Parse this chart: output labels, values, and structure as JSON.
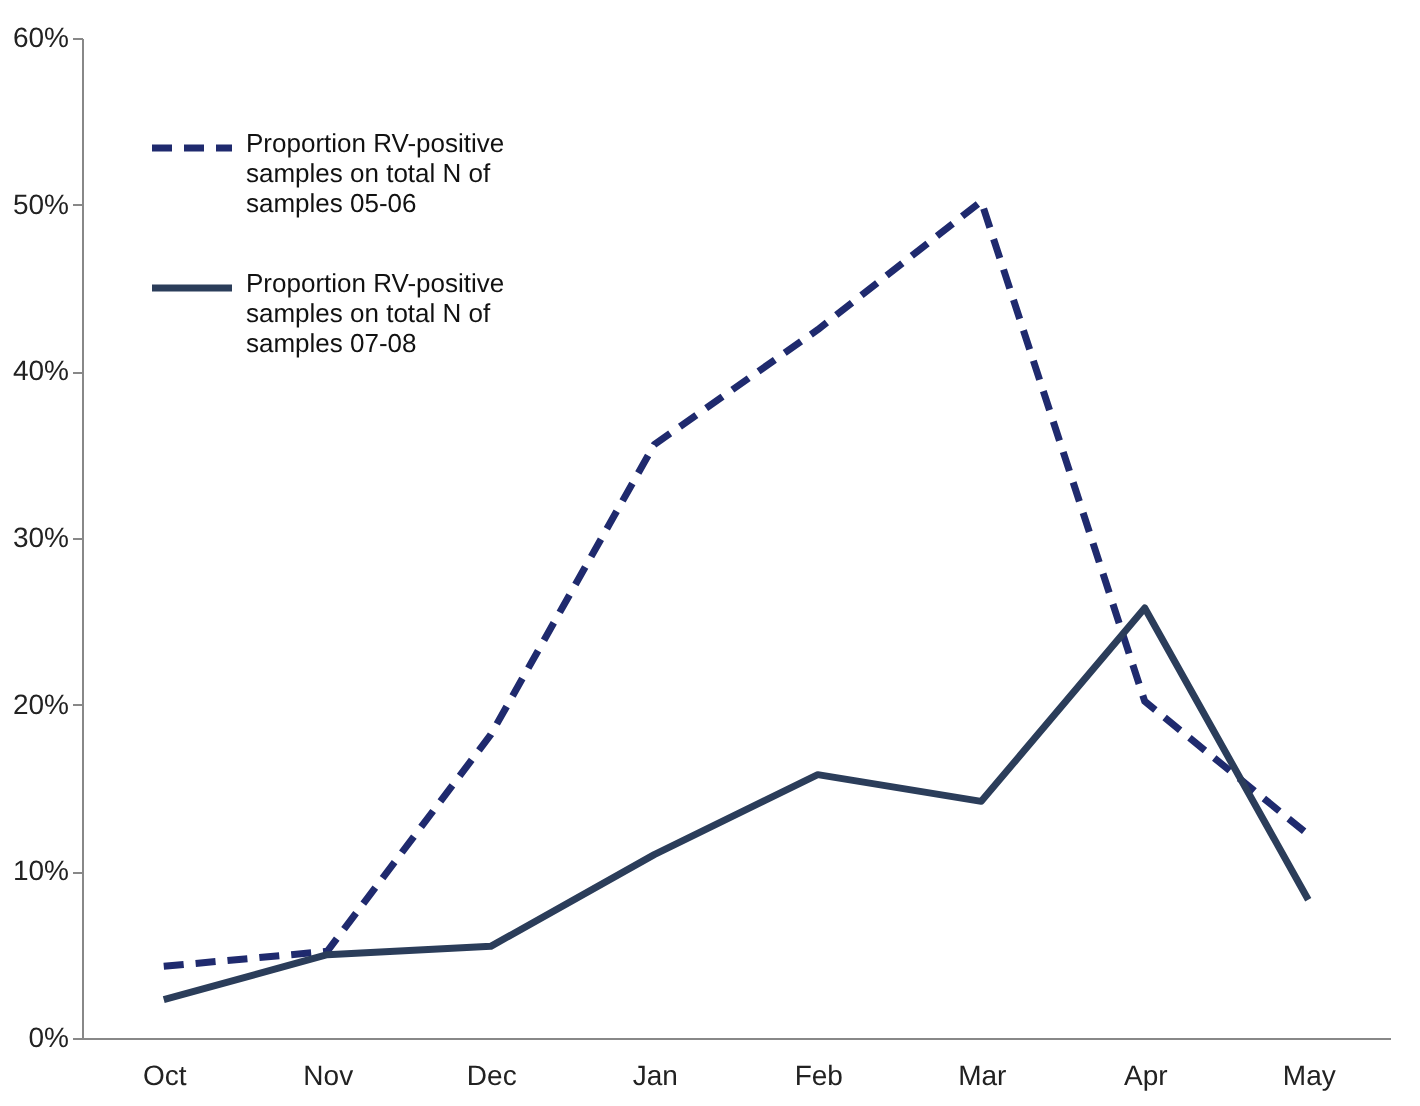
{
  "chart_data": {
    "type": "line",
    "categories": [
      "Oct",
      "Nov",
      "Dec",
      "Jan",
      "Feb",
      "Mar",
      "Apr",
      "May"
    ],
    "series": [
      {
        "name": "Proportion RV-positive samples on total N of samples 05-06",
        "color": "#1f2a6e",
        "line_style": "dashed",
        "values": [
          4.3,
          5.2,
          18.2,
          35.6,
          42.5,
          50.2,
          20.2,
          12.2
        ]
      },
      {
        "name": "Proportion RV-positive samples on total N of samples 07-08",
        "color": "#2b3d5a",
        "line_style": "solid",
        "values": [
          2.3,
          5.0,
          5.5,
          11.0,
          15.8,
          14.2,
          25.8,
          8.3
        ]
      }
    ],
    "ylim": [
      0,
      60
    ],
    "yticks": [
      {
        "value": 0,
        "label": "0%"
      },
      {
        "value": 10,
        "label": "10%"
      },
      {
        "value": 20,
        "label": "20%"
      },
      {
        "value": 30,
        "label": "30%"
      },
      {
        "value": 40,
        "label": "40%"
      },
      {
        "value": 50,
        "label": "50%"
      },
      {
        "value": 60,
        "label": "60%"
      }
    ],
    "grid": false,
    "legend": "top left",
    "marker": "none"
  }
}
